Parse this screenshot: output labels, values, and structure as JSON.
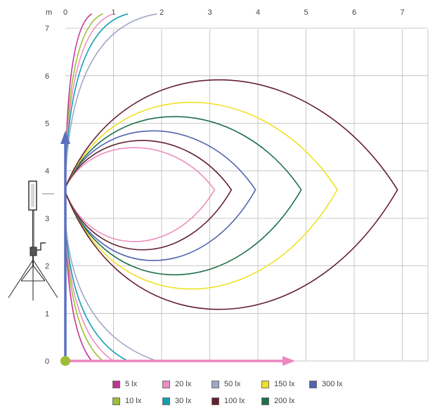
{
  "chart_data": {
    "type": "line",
    "axis_unit": "m",
    "x_ticks": [
      "0",
      "1",
      "2",
      "3",
      "4",
      "5",
      "6",
      "7"
    ],
    "y_ticks": [
      "0",
      "1",
      "2",
      "3",
      "4",
      "5",
      "6",
      "7"
    ],
    "xlim": [
      0,
      7.5
    ],
    "ylim": [
      0,
      7.3
    ],
    "grid": true,
    "light_source_height": 3.6,
    "legend": [
      {
        "label": "5 lx",
        "color": "#c2328f"
      },
      {
        "label": "20 lx",
        "color": "#ec8fbf"
      },
      {
        "label": "50 lx",
        "color": "#a0a7c6"
      },
      {
        "label": "150 lx",
        "color": "#efe121"
      },
      {
        "label": "300 lx",
        "color": "#5164ad"
      },
      {
        "label": "10 lx",
        "color": "#9bbe35"
      },
      {
        "label": "30 lx",
        "color": "#139eb4"
      },
      {
        "label": "100 lx",
        "color": "#64202e"
      },
      {
        "label": "200 lx",
        "color": "#1d7049"
      }
    ],
    "series": [
      {
        "name": "5 lx",
        "color": "#c2328f",
        "kind": "near",
        "reach": 0.55
      },
      {
        "name": "10 lx",
        "color": "#9bbe35",
        "kind": "near",
        "reach": 0.78
      },
      {
        "name": "20 lx",
        "color": "#ec8fbf",
        "kind": "near",
        "reach": 1.0
      },
      {
        "name": "30 lx",
        "color": "#139eb4",
        "kind": "near",
        "reach": 1.3
      },
      {
        "name": "50 lx",
        "color": "#a0a7c6",
        "kind": "near",
        "reach": 1.9
      },
      {
        "name": "20 lx",
        "color": "#ec8fbf",
        "kind": "loop",
        "x_max": 3.1,
        "y_top": 4.75,
        "y_bottom": 2.18
      },
      {
        "name": "100 lx",
        "color": "#64202e",
        "kind": "loop",
        "x_max": 3.45,
        "y_top": 4.95,
        "y_bottom": 1.95
      },
      {
        "name": "300 lx",
        "color": "#5164ad",
        "kind": "loop",
        "x_max": 3.95,
        "y_top": 5.22,
        "y_bottom": 1.65
      },
      {
        "name": "200 lx",
        "color": "#1d7049",
        "kind": "loop",
        "x_max": 4.9,
        "y_top": 5.62,
        "y_bottom": 1.25
      },
      {
        "name": "150 lx",
        "color": "#efe121",
        "kind": "loop",
        "x_max": 5.65,
        "y_top": 6.02,
        "y_bottom": 0.85
      },
      {
        "name": "100 lx",
        "color": "#64202e",
        "kind": "loop",
        "x_max": 6.9,
        "y_top": 6.65,
        "y_bottom": 0.28
      }
    ]
  }
}
